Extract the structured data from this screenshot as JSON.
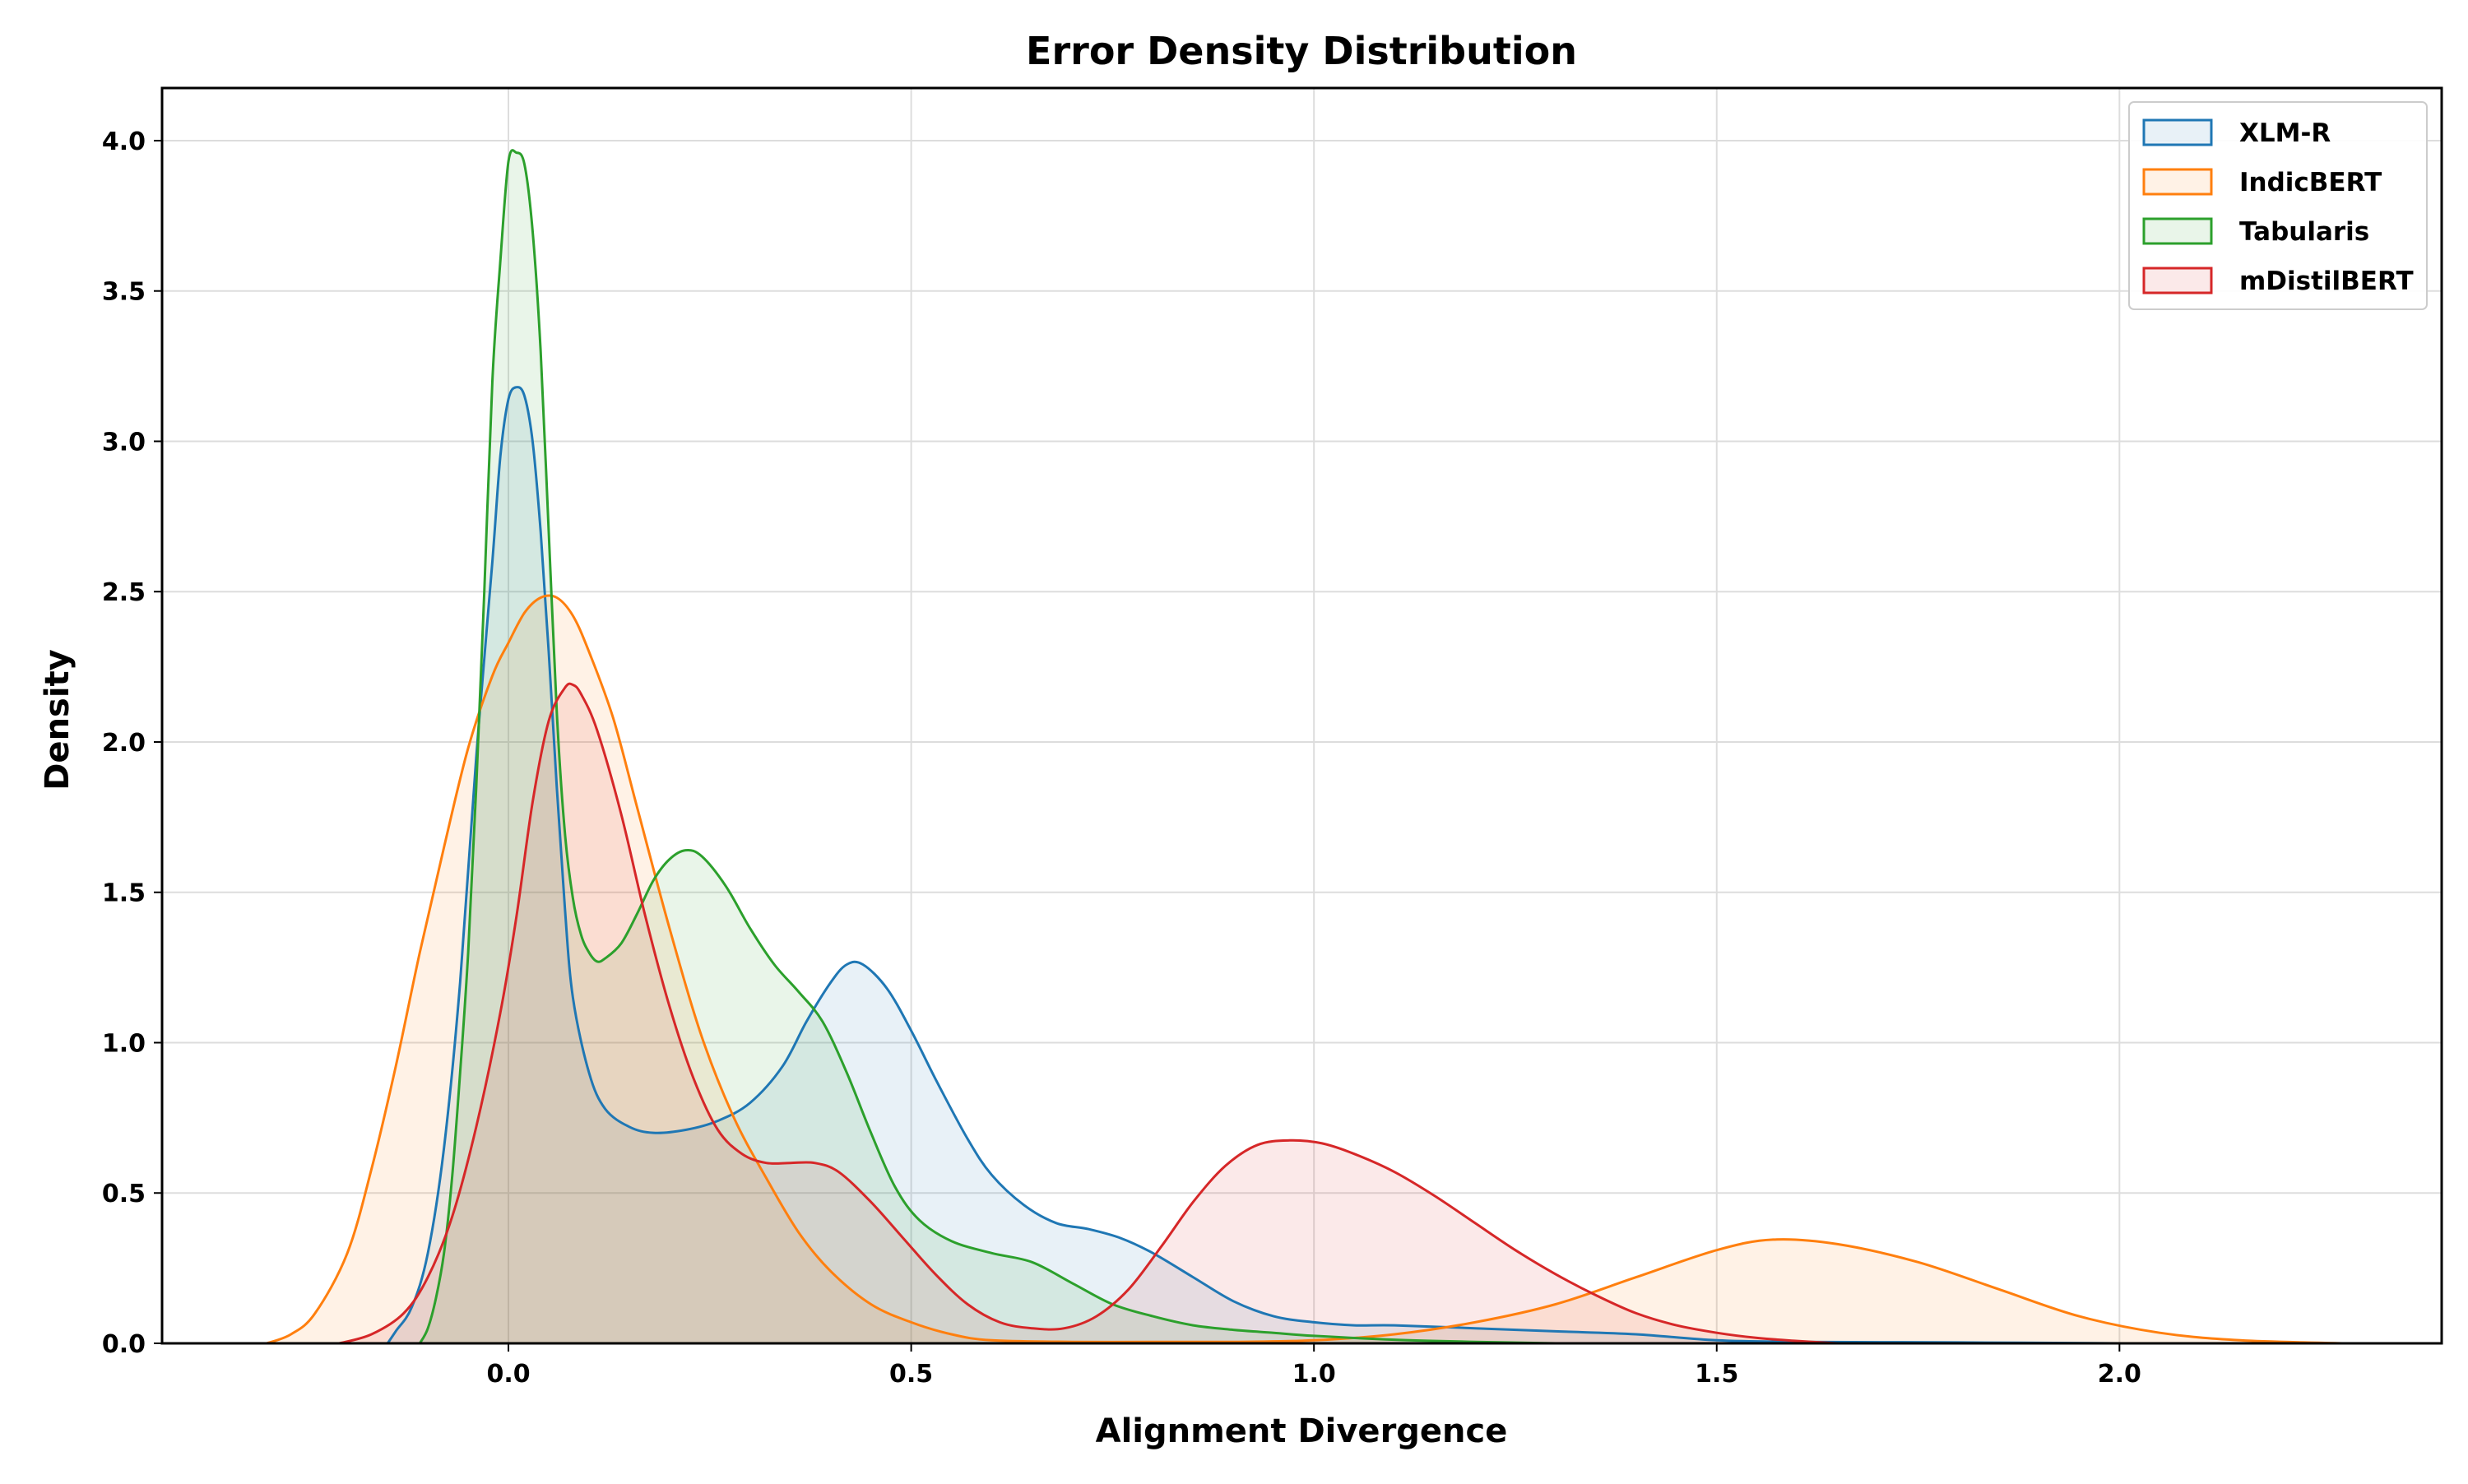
{
  "chart_data": {
    "type": "area",
    "title": "Error Density Distribution",
    "xlabel": "Alignment Divergence",
    "ylabel": "Density",
    "xlim": [
      -0.43,
      2.4
    ],
    "ylim": [
      0,
      4.175
    ],
    "xticks": [
      0.0,
      0.5,
      1.0,
      1.5,
      2.0
    ],
    "xtick_labels": [
      "0.0",
      "0.5",
      "1.0",
      "1.5",
      "2.0"
    ],
    "yticks": [
      0.0,
      0.5,
      1.0,
      1.5,
      2.0,
      2.5,
      3.0,
      3.5,
      4.0
    ],
    "ytick_labels": [
      "0.0",
      "0.5",
      "1.0",
      "1.5",
      "2.0",
      "2.5",
      "3.0",
      "3.5",
      "4.0"
    ],
    "grid": true,
    "legend_position": "top-right",
    "series": [
      {
        "name": "XLM-R",
        "color": "#1f77b4",
        "points": [
          [
            -0.15,
            0.0
          ],
          [
            -0.14,
            0.04
          ],
          [
            -0.12,
            0.12
          ],
          [
            -0.1,
            0.3
          ],
          [
            -0.08,
            0.65
          ],
          [
            -0.06,
            1.2
          ],
          [
            -0.04,
            1.95
          ],
          [
            -0.02,
            2.6
          ],
          [
            -0.01,
            2.95
          ],
          [
            0.0,
            3.14
          ],
          [
            0.01,
            3.18
          ],
          [
            0.02,
            3.15
          ],
          [
            0.03,
            3.0
          ],
          [
            0.04,
            2.7
          ],
          [
            0.05,
            2.3
          ],
          [
            0.06,
            1.85
          ],
          [
            0.07,
            1.45
          ],
          [
            0.08,
            1.15
          ],
          [
            0.1,
            0.9
          ],
          [
            0.12,
            0.78
          ],
          [
            0.15,
            0.72
          ],
          [
            0.18,
            0.7
          ],
          [
            0.22,
            0.71
          ],
          [
            0.26,
            0.74
          ],
          [
            0.3,
            0.8
          ],
          [
            0.34,
            0.92
          ],
          [
            0.37,
            1.07
          ],
          [
            0.4,
            1.2
          ],
          [
            0.42,
            1.26
          ],
          [
            0.44,
            1.26
          ],
          [
            0.47,
            1.18
          ],
          [
            0.5,
            1.04
          ],
          [
            0.53,
            0.88
          ],
          [
            0.57,
            0.68
          ],
          [
            0.6,
            0.56
          ],
          [
            0.64,
            0.46
          ],
          [
            0.68,
            0.4
          ],
          [
            0.72,
            0.38
          ],
          [
            0.76,
            0.35
          ],
          [
            0.8,
            0.3
          ],
          [
            0.85,
            0.22
          ],
          [
            0.9,
            0.14
          ],
          [
            0.95,
            0.09
          ],
          [
            1.0,
            0.07
          ],
          [
            1.05,
            0.06
          ],
          [
            1.1,
            0.06
          ],
          [
            1.2,
            0.05
          ],
          [
            1.3,
            0.04
          ],
          [
            1.4,
            0.03
          ],
          [
            1.5,
            0.01
          ],
          [
            1.6,
            0.005
          ],
          [
            1.8,
            0.003
          ],
          [
            2.0,
            0.0
          ]
        ]
      },
      {
        "name": "IndicBERT",
        "color": "#ff7f0e",
        "points": [
          [
            -0.3,
            0.0
          ],
          [
            -0.27,
            0.03
          ],
          [
            -0.24,
            0.1
          ],
          [
            -0.2,
            0.3
          ],
          [
            -0.17,
            0.58
          ],
          [
            -0.14,
            0.92
          ],
          [
            -0.11,
            1.3
          ],
          [
            -0.08,
            1.65
          ],
          [
            -0.05,
            1.98
          ],
          [
            -0.02,
            2.22
          ],
          [
            0.0,
            2.33
          ],
          [
            0.02,
            2.43
          ],
          [
            0.04,
            2.48
          ],
          [
            0.06,
            2.48
          ],
          [
            0.08,
            2.42
          ],
          [
            0.1,
            2.3
          ],
          [
            0.13,
            2.08
          ],
          [
            0.16,
            1.78
          ],
          [
            0.2,
            1.38
          ],
          [
            0.24,
            1.02
          ],
          [
            0.28,
            0.75
          ],
          [
            0.32,
            0.55
          ],
          [
            0.36,
            0.37
          ],
          [
            0.4,
            0.24
          ],
          [
            0.45,
            0.13
          ],
          [
            0.5,
            0.07
          ],
          [
            0.55,
            0.03
          ],
          [
            0.6,
            0.01
          ],
          [
            0.7,
            0.005
          ],
          [
            0.8,
            0.005
          ],
          [
            0.9,
            0.005
          ],
          [
            1.0,
            0.01
          ],
          [
            1.1,
            0.03
          ],
          [
            1.2,
            0.07
          ],
          [
            1.3,
            0.13
          ],
          [
            1.4,
            0.22
          ],
          [
            1.5,
            0.31
          ],
          [
            1.57,
            0.345
          ],
          [
            1.65,
            0.33
          ],
          [
            1.75,
            0.27
          ],
          [
            1.85,
            0.18
          ],
          [
            1.95,
            0.09
          ],
          [
            2.05,
            0.035
          ],
          [
            2.15,
            0.01
          ],
          [
            2.28,
            0.0
          ]
        ]
      },
      {
        "name": "Tabularis",
        "color": "#2ca02c",
        "points": [
          [
            -0.11,
            0.0
          ],
          [
            -0.1,
            0.05
          ],
          [
            -0.09,
            0.15
          ],
          [
            -0.08,
            0.3
          ],
          [
            -0.07,
            0.55
          ],
          [
            -0.06,
            0.9
          ],
          [
            -0.05,
            1.3
          ],
          [
            -0.04,
            1.85
          ],
          [
            -0.03,
            2.5
          ],
          [
            -0.02,
            3.2
          ],
          [
            -0.01,
            3.6
          ],
          [
            0.0,
            3.93
          ],
          [
            0.01,
            3.96
          ],
          [
            0.02,
            3.92
          ],
          [
            0.03,
            3.7
          ],
          [
            0.04,
            3.3
          ],
          [
            0.05,
            2.7
          ],
          [
            0.06,
            2.1
          ],
          [
            0.07,
            1.7
          ],
          [
            0.08,
            1.48
          ],
          [
            0.09,
            1.36
          ],
          [
            0.1,
            1.3
          ],
          [
            0.11,
            1.27
          ],
          [
            0.12,
            1.28
          ],
          [
            0.14,
            1.33
          ],
          [
            0.16,
            1.43
          ],
          [
            0.18,
            1.54
          ],
          [
            0.2,
            1.61
          ],
          [
            0.22,
            1.64
          ],
          [
            0.24,
            1.62
          ],
          [
            0.27,
            1.52
          ],
          [
            0.3,
            1.38
          ],
          [
            0.33,
            1.26
          ],
          [
            0.36,
            1.17
          ],
          [
            0.39,
            1.07
          ],
          [
            0.42,
            0.9
          ],
          [
            0.45,
            0.7
          ],
          [
            0.48,
            0.52
          ],
          [
            0.51,
            0.41
          ],
          [
            0.55,
            0.34
          ],
          [
            0.6,
            0.3
          ],
          [
            0.65,
            0.27
          ],
          [
            0.7,
            0.2
          ],
          [
            0.75,
            0.13
          ],
          [
            0.8,
            0.09
          ],
          [
            0.85,
            0.06
          ],
          [
            0.9,
            0.045
          ],
          [
            0.95,
            0.035
          ],
          [
            1.0,
            0.025
          ],
          [
            1.1,
            0.012
          ],
          [
            1.2,
            0.005
          ],
          [
            1.3,
            0.0
          ]
        ]
      },
      {
        "name": "mDistilBERT",
        "color": "#d62728",
        "points": [
          [
            -0.21,
            0.0
          ],
          [
            -0.17,
            0.03
          ],
          [
            -0.13,
            0.1
          ],
          [
            -0.1,
            0.22
          ],
          [
            -0.07,
            0.42
          ],
          [
            -0.04,
            0.72
          ],
          [
            -0.01,
            1.1
          ],
          [
            0.01,
            1.42
          ],
          [
            0.03,
            1.8
          ],
          [
            0.05,
            2.07
          ],
          [
            0.07,
            2.18
          ],
          [
            0.08,
            2.19
          ],
          [
            0.09,
            2.16
          ],
          [
            0.11,
            2.04
          ],
          [
            0.14,
            1.76
          ],
          [
            0.17,
            1.42
          ],
          [
            0.2,
            1.12
          ],
          [
            0.23,
            0.88
          ],
          [
            0.26,
            0.71
          ],
          [
            0.29,
            0.63
          ],
          [
            0.32,
            0.6
          ],
          [
            0.35,
            0.6
          ],
          [
            0.38,
            0.6
          ],
          [
            0.41,
            0.57
          ],
          [
            0.45,
            0.47
          ],
          [
            0.49,
            0.35
          ],
          [
            0.53,
            0.23
          ],
          [
            0.57,
            0.13
          ],
          [
            0.61,
            0.07
          ],
          [
            0.65,
            0.05
          ],
          [
            0.69,
            0.05
          ],
          [
            0.73,
            0.09
          ],
          [
            0.77,
            0.18
          ],
          [
            0.81,
            0.32
          ],
          [
            0.85,
            0.47
          ],
          [
            0.89,
            0.59
          ],
          [
            0.93,
            0.66
          ],
          [
            0.97,
            0.675
          ],
          [
            1.01,
            0.665
          ],
          [
            1.05,
            0.63
          ],
          [
            1.1,
            0.57
          ],
          [
            1.15,
            0.49
          ],
          [
            1.2,
            0.4
          ],
          [
            1.25,
            0.31
          ],
          [
            1.3,
            0.23
          ],
          [
            1.35,
            0.16
          ],
          [
            1.4,
            0.1
          ],
          [
            1.45,
            0.06
          ],
          [
            1.5,
            0.035
          ],
          [
            1.55,
            0.018
          ],
          [
            1.6,
            0.008
          ],
          [
            1.65,
            0.0
          ]
        ]
      }
    ]
  }
}
